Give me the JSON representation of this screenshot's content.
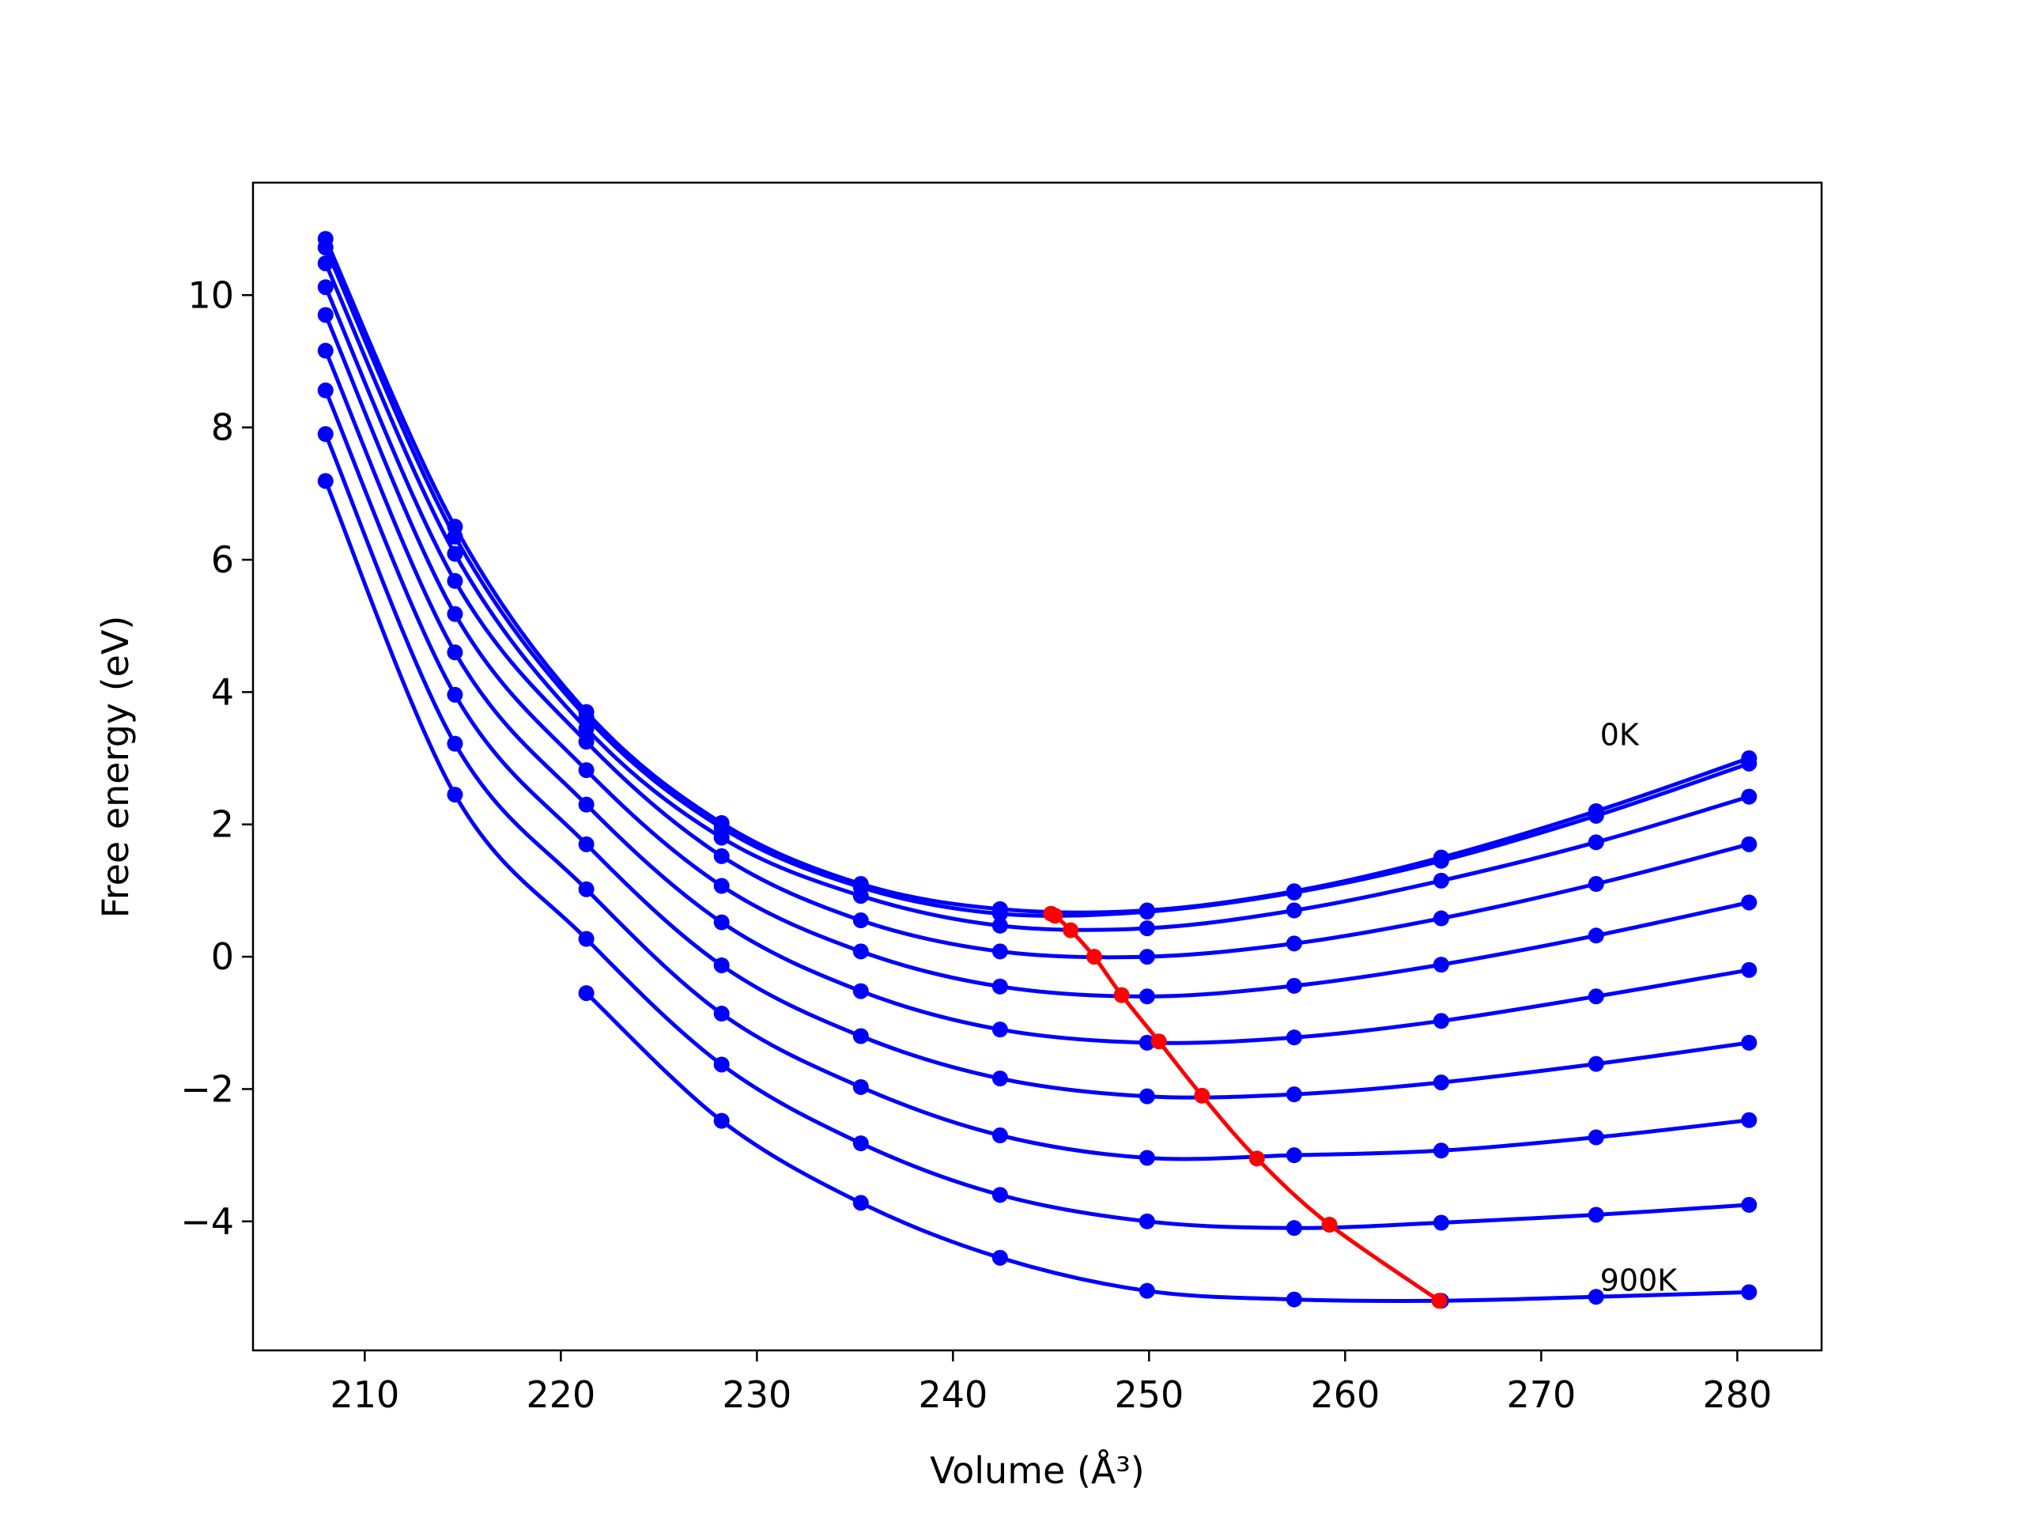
{
  "chart_data": {
    "type": "line",
    "xlabel": "Volume (Å³)",
    "ylabel": "Free energy (eV)",
    "xlim": [
      204.3,
      284.3
    ],
    "ylim": [
      -5.95,
      11.7
    ],
    "xticks": [
      210,
      220,
      230,
      240,
      250,
      260,
      270,
      280
    ],
    "yticks": [
      -4,
      -2,
      0,
      2,
      4,
      6,
      8,
      10
    ],
    "ytick_labels": [
      "−4",
      "−2",
      "0",
      "2",
      "4",
      "6",
      "8",
      "10"
    ],
    "grid": false,
    "legend": "none",
    "annotations": [
      {
        "text": "0K",
        "x": 273.0,
        "y": 3.2
      },
      {
        "text": "900K",
        "x": 273.0,
        "y": -5.05
      }
    ],
    "x": [
      208.0,
      214.6,
      221.3,
      228.2,
      235.3,
      242.4,
      249.9,
      257.4,
      264.9,
      272.8,
      280.6
    ],
    "series": [
      {
        "temperature_K": 0,
        "color": "#0000ff",
        "values": [
          10.85,
          6.5,
          3.7,
          2.02,
          1.1,
          0.72,
          0.7,
          0.99,
          1.5,
          2.2,
          3.0
        ]
      },
      {
        "temperature_K": 100,
        "color": "#0000ff",
        "values": [
          10.72,
          6.35,
          3.62,
          1.95,
          1.05,
          0.65,
          0.68,
          0.97,
          1.45,
          2.13,
          2.92
        ]
      },
      {
        "temperature_K": 200,
        "color": "#0000ff",
        "values": [
          10.48,
          6.09,
          3.45,
          1.8,
          0.92,
          0.47,
          0.43,
          0.7,
          1.15,
          1.73,
          2.42
        ]
      },
      {
        "temperature_K": 300,
        "color": "#0000ff",
        "values": [
          10.12,
          5.68,
          3.25,
          1.52,
          0.55,
          0.08,
          0.0,
          0.2,
          0.58,
          1.1,
          1.7
        ]
      },
      {
        "temperature_K": 400,
        "color": "#0000ff",
        "values": [
          9.7,
          5.18,
          2.82,
          1.07,
          0.08,
          -0.45,
          -0.6,
          -0.44,
          -0.12,
          0.32,
          0.82
        ]
      },
      {
        "temperature_K": 500,
        "color": "#0000ff",
        "values": [
          9.16,
          4.6,
          2.3,
          0.52,
          -0.52,
          -1.1,
          -1.3,
          -1.22,
          -0.97,
          -0.6,
          -0.2
        ]
      },
      {
        "temperature_K": 600,
        "color": "#0000ff",
        "values": [
          8.56,
          3.96,
          1.7,
          -0.13,
          -1.2,
          -1.84,
          -2.11,
          -2.08,
          -1.9,
          -1.62,
          -1.3
        ]
      },
      {
        "temperature_K": 700,
        "color": "#0000ff",
        "values": [
          7.9,
          3.22,
          1.02,
          -0.86,
          -1.97,
          -2.7,
          -3.04,
          -3.0,
          -2.93,
          -2.73,
          -2.47
        ]
      },
      {
        "temperature_K": 800,
        "color": "#0000ff",
        "values": [
          7.19,
          2.45,
          0.27,
          -1.63,
          -2.82,
          -3.6,
          -4.0,
          -4.1,
          -4.02,
          -3.9,
          -3.75
        ]
      },
      {
        "temperature_K": 900,
        "color": "#0000ff",
        "values": [
          null,
          null,
          -0.55,
          -2.48,
          -3.72,
          -4.55,
          -5.05,
          -5.18,
          -5.2,
          -5.14,
          -5.07
        ]
      }
    ],
    "minimum_curve": {
      "color": "#ff0000",
      "x": [
        245.0,
        245.2,
        246.0,
        247.2,
        248.6,
        250.5,
        252.7,
        255.5,
        259.2,
        264.8
      ],
      "y": [
        0.65,
        0.62,
        0.4,
        0.0,
        -0.58,
        -1.28,
        -2.1,
        -3.05,
        -4.05,
        -5.2
      ]
    }
  }
}
